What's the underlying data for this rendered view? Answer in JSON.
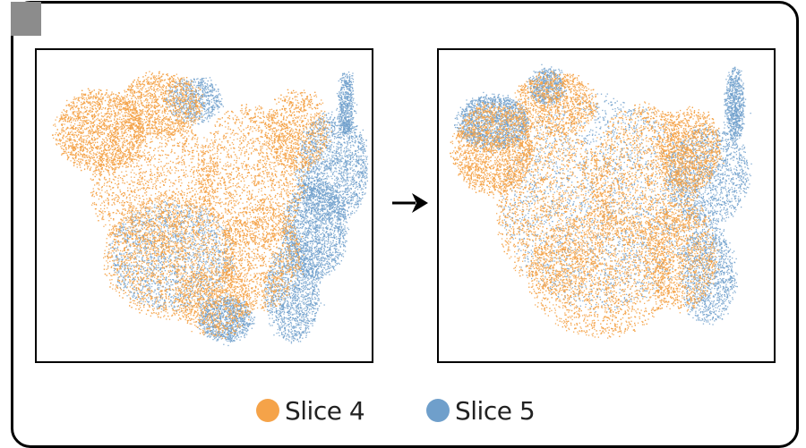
{
  "colors": {
    "slice4": "#f5a349",
    "slice5": "#6f9fcb",
    "frame": "#000000",
    "corner": "#8c8c8c"
  },
  "legend": [
    {
      "label": "Slice 4",
      "color": "#f5a349"
    },
    {
      "label": "Slice 5",
      "color": "#6f9fcb"
    }
  ],
  "panels": [
    {
      "name": "before-alignment",
      "description_hidden": true
    },
    {
      "name": "after-alignment",
      "description_hidden": true
    }
  ],
  "arrow_icon": "right-arrow-icon"
}
